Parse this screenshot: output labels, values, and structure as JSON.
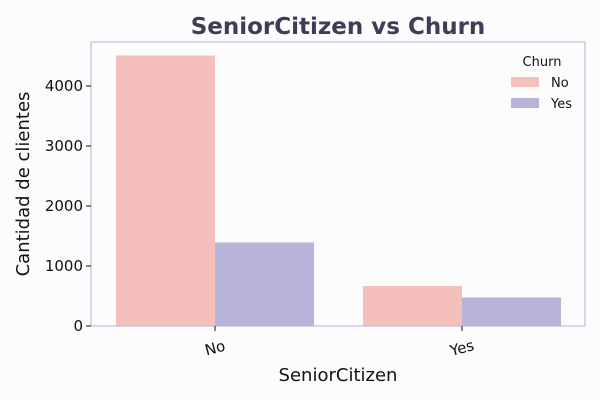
{
  "chart_data": {
    "type": "bar",
    "title": "SeniorCitizen vs Churn",
    "xlabel": "SeniorCitizen",
    "ylabel": "Cantidad de clientes",
    "categories": [
      "No",
      "Yes"
    ],
    "series": [
      {
        "name": "No",
        "values": [
          4508,
          666
        ],
        "color": "#f5bfbc"
      },
      {
        "name": "Yes",
        "values": [
          1393,
          476
        ],
        "color": "#b9b3d9"
      }
    ],
    "yticks": [
      0,
      1000,
      2000,
      3000,
      4000
    ],
    "ylim": [
      0,
      4733
    ],
    "grid": false,
    "legend": {
      "title": "Churn",
      "placement": "top-right"
    }
  },
  "style": {
    "title_color": "#3d3d57",
    "frame_color": "#b7b1dc",
    "background": "#fcfcfc"
  }
}
